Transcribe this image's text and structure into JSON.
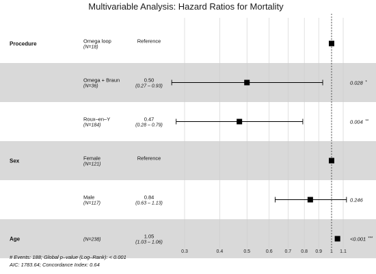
{
  "chart_data": {
    "type": "forest",
    "title": "Multivariable Analysis: Hazard Ratios for Mortality",
    "x_scale": "log",
    "xlim": [
      0.25,
      1.2
    ],
    "x_ticks": [
      0.3,
      0.4,
      0.5,
      0.6,
      0.7,
      0.8,
      0.9,
      1,
      1.1
    ],
    "reference_line": 1,
    "rows": [
      {
        "variable": "Procedure",
        "level": "Omega loop",
        "n": "(N=18)",
        "estimate_text": "Reference",
        "ci_text": "",
        "hr": 1.0,
        "lo": null,
        "hi": null,
        "p": "",
        "sig": "",
        "shaded": false
      },
      {
        "variable": "",
        "level": "Omega + Braun",
        "n": "(N=36)",
        "estimate_text": "0.50",
        "ci_text": "(0.27 – 0.93)",
        "hr": 0.5,
        "lo": 0.27,
        "hi": 0.93,
        "p": "0.028",
        "sig": "*",
        "shaded": true
      },
      {
        "variable": "",
        "level": "Roux–en–Y",
        "n": "(N=184)",
        "estimate_text": "0.47",
        "ci_text": "(0.28 – 0.79)",
        "hr": 0.47,
        "lo": 0.28,
        "hi": 0.79,
        "p": "0.004",
        "sig": "**",
        "shaded": false
      },
      {
        "variable": "Sex",
        "level": "Female",
        "n": "(N=121)",
        "estimate_text": "Reference",
        "ci_text": "",
        "hr": 1.0,
        "lo": null,
        "hi": null,
        "p": "",
        "sig": "",
        "shaded": true
      },
      {
        "variable": "",
        "level": "Male",
        "n": "(N=117)",
        "estimate_text": "0.84",
        "ci_text": "(0.63 – 1.13)",
        "hr": 0.84,
        "lo": 0.63,
        "hi": 1.13,
        "p": "0.246",
        "sig": "",
        "shaded": false
      },
      {
        "variable": "Age",
        "level": "",
        "n": "(N=238)",
        "estimate_text": "1.05",
        "ci_text": "(1.03 – 1.06)",
        "hr": 1.05,
        "lo": 1.03,
        "hi": 1.06,
        "p": "<0.001",
        "sig": "***",
        "shaded": true
      }
    ],
    "footnote": [
      "# Events: 188; Global p–value (Log–Rank): < 0.001",
      "AIC: 1783.64; Concordance Index: 0.64"
    ],
    "colors": {
      "shade": "#d9d9d9",
      "grid": "#cccccc",
      "marker": "#000000"
    }
  }
}
